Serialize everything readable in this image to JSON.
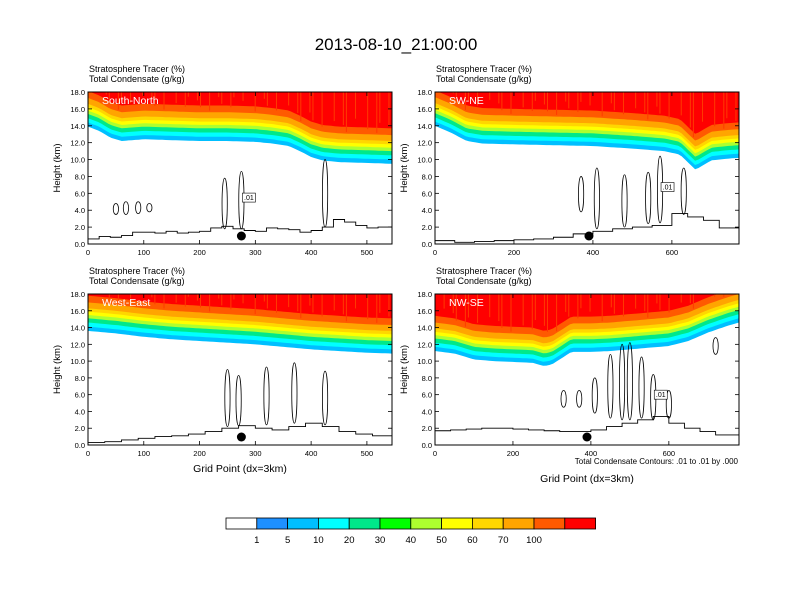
{
  "title": "2013-08-10_21:00:00",
  "footnote": "Total Condensate Contours: .01 to .01 by .000",
  "colorbar": {
    "labels": [
      "1",
      "5",
      "10",
      "20",
      "30",
      "40",
      "50",
      "60",
      "70",
      "100"
    ],
    "colors": [
      "#ffffff",
      "#1e90ff",
      "#00bfff",
      "#00ffff",
      "#00e88a",
      "#00ff00",
      "#adff2f",
      "#ffff00",
      "#ffd700",
      "#ffa500",
      "#ff5a00",
      "#ff0000"
    ]
  },
  "chart_data": [
    {
      "type": "heatmap",
      "panel_label": "South-North",
      "header_line1": "Stratosphere Tracer   (%)",
      "header_line2": "Total Condensate   (g/kg)",
      "ylabel": "Height (km)",
      "xlabel": "",
      "xlim": [
        0,
        545
      ],
      "ylim": [
        0,
        18
      ],
      "x_ticks": [
        "0",
        "100",
        "200",
        "300",
        "400",
        "500"
      ],
      "y_ticks": [
        "0.0",
        "2.0",
        "4.0",
        "6.0",
        "8.0",
        "10.0",
        "12.0",
        "14.0",
        "16.0",
        "18.0"
      ],
      "contour_label": ".01",
      "marker_x": 275,
      "tropopause_x": [
        0,
        20,
        40,
        60,
        80,
        100,
        150,
        200,
        250,
        300,
        330,
        360,
        380,
        400,
        420,
        450,
        500,
        545
      ],
      "tropopause_y": [
        14.5,
        14.0,
        13.2,
        12.8,
        12.9,
        13.0,
        12.9,
        12.8,
        12.8,
        12.7,
        12.5,
        12.2,
        11.6,
        10.9,
        10.5,
        10.3,
        10.2,
        10.1
      ],
      "terrain_x": [
        0,
        20,
        40,
        60,
        80,
        100,
        120,
        140,
        160,
        180,
        200,
        220,
        240,
        260,
        280,
        300,
        320,
        340,
        360,
        380,
        400,
        420,
        440,
        460,
        480,
        500,
        520,
        545
      ],
      "terrain_y": [
        0.6,
        0.9,
        0.8,
        1.0,
        1.4,
        1.4,
        1.3,
        1.5,
        1.3,
        1.4,
        1.5,
        1.9,
        2.1,
        1.8,
        1.6,
        1.5,
        1.9,
        1.8,
        1.7,
        1.4,
        1.6,
        2.0,
        2.9,
        2.6,
        2.2,
        1.9,
        2.0,
        1.8
      ],
      "clouds": [
        {
          "x": 50,
          "ybot": 3.5,
          "ytop": 4.8
        },
        {
          "x": 68,
          "ybot": 3.5,
          "ytop": 5.0
        },
        {
          "x": 90,
          "ybot": 3.6,
          "ytop": 5.0
        },
        {
          "x": 110,
          "ybot": 3.8,
          "ytop": 4.8
        },
        {
          "x": 245,
          "ybot": 1.8,
          "ytop": 7.8
        },
        {
          "x": 275,
          "ybot": 1.8,
          "ytop": 8.6
        },
        {
          "x": 425,
          "ybot": 2.0,
          "ytop": 10.0
        }
      ]
    },
    {
      "type": "heatmap",
      "panel_label": "SW-NE",
      "header_line1": "Stratosphere Tracer   (%)",
      "header_line2": "Total Condensate   (g/kg)",
      "ylabel": "Height (km)",
      "xlabel": "",
      "xlim": [
        0,
        770
      ],
      "ylim": [
        0,
        18
      ],
      "x_ticks": [
        "0",
        "200",
        "400",
        "600"
      ],
      "y_ticks": [
        "0.0",
        "2.0",
        "4.0",
        "6.0",
        "8.0",
        "10.0",
        "12.0",
        "14.0",
        "16.0",
        "18.0"
      ],
      "contour_label": ".01",
      "marker_x": 390,
      "tropopause_x": [
        0,
        40,
        80,
        120,
        200,
        300,
        400,
        500,
        580,
        620,
        660,
        700,
        740,
        770
      ],
      "tropopause_y": [
        14.6,
        13.8,
        12.8,
        12.5,
        12.4,
        12.3,
        12.2,
        11.9,
        11.6,
        11.2,
        9.4,
        10.5,
        10.7,
        10.8
      ],
      "terrain_x": [
        0,
        50,
        100,
        150,
        200,
        250,
        300,
        350,
        400,
        450,
        500,
        550,
        600,
        640,
        680,
        720,
        770
      ],
      "terrain_y": [
        0.4,
        0.2,
        0.3,
        0.4,
        0.5,
        0.6,
        0.8,
        1.2,
        1.5,
        1.8,
        2.0,
        2.2,
        3.6,
        3.2,
        2.8,
        1.9,
        1.8
      ],
      "clouds": [
        {
          "x": 370,
          "ybot": 3.8,
          "ytop": 8.0
        },
        {
          "x": 410,
          "ybot": 1.8,
          "ytop": 9.0
        },
        {
          "x": 480,
          "ybot": 2.0,
          "ytop": 8.2
        },
        {
          "x": 540,
          "ybot": 2.4,
          "ytop": 8.5
        },
        {
          "x": 570,
          "ybot": 2.5,
          "ytop": 10.4
        },
        {
          "x": 630,
          "ybot": 3.5,
          "ytop": 9.0
        }
      ]
    },
    {
      "type": "heatmap",
      "panel_label": "West-East",
      "header_line1": "Stratosphere Tracer   (%)",
      "header_line2": "Total Condensate   (g/kg)",
      "ylabel": "Height (km)",
      "xlabel": "Grid Point (dx=3km)",
      "xlim": [
        0,
        545
      ],
      "ylim": [
        0,
        18
      ],
      "x_ticks": [
        "0",
        "100",
        "200",
        "300",
        "400",
        "500"
      ],
      "y_ticks": [
        "0.0",
        "2.0",
        "4.0",
        "6.0",
        "8.0",
        "10.0",
        "12.0",
        "14.0",
        "16.0",
        "18.0"
      ],
      "contour_label": "",
      "marker_x": 275,
      "tropopause_x": [
        0,
        50,
        100,
        150,
        200,
        250,
        300,
        350,
        400,
        450,
        500,
        545
      ],
      "tropopause_y": [
        14.2,
        13.9,
        13.5,
        13.2,
        13.0,
        12.8,
        12.6,
        12.3,
        12.0,
        11.8,
        11.6,
        11.5
      ],
      "terrain_x": [
        0,
        30,
        60,
        90,
        120,
        150,
        180,
        210,
        240,
        270,
        300,
        330,
        360,
        390,
        420,
        450,
        480,
        510,
        545
      ],
      "terrain_y": [
        0.3,
        0.4,
        0.6,
        0.8,
        1.0,
        1.1,
        1.3,
        1.6,
        2.0,
        2.3,
        2.0,
        1.8,
        2.2,
        2.6,
        2.2,
        1.6,
        1.3,
        1.1,
        1.0
      ],
      "clouds": [
        {
          "x": 250,
          "ybot": 2.2,
          "ytop": 9.0
        },
        {
          "x": 270,
          "ybot": 2.3,
          "ytop": 8.3
        },
        {
          "x": 320,
          "ybot": 2.4,
          "ytop": 9.3
        },
        {
          "x": 370,
          "ybot": 2.6,
          "ytop": 9.8
        },
        {
          "x": 425,
          "ybot": 2.4,
          "ytop": 8.8
        }
      ]
    },
    {
      "type": "heatmap",
      "panel_label": "NW-SE",
      "header_line1": "Stratosphere Tracer   (%)",
      "header_line2": "Total Condensate   (g/kg)",
      "ylabel": "Height (km)",
      "xlabel": "Grid Point (dx=3km)",
      "xlim": [
        0,
        780
      ],
      "ylim": [
        0,
        18
      ],
      "x_ticks": [
        "0",
        "200",
        "400",
        "600"
      ],
      "y_ticks": [
        "0.0",
        "2.0",
        "4.0",
        "6.0",
        "8.0",
        "10.0",
        "12.0",
        "14.0",
        "16.0",
        "18.0"
      ],
      "contour_label": ".01",
      "marker_x": 390,
      "tropopause_x": [
        0,
        50,
        100,
        150,
        200,
        250,
        280,
        300,
        350,
        400,
        450,
        500,
        550,
        600,
        650,
        700,
        750,
        780
      ],
      "tropopause_y": [
        11.8,
        11.5,
        10.8,
        10.6,
        10.5,
        10.4,
        10.0,
        10.2,
        11.7,
        11.7,
        11.8,
        12.0,
        12.2,
        12.4,
        13.0,
        14.0,
        14.8,
        15.2
      ],
      "terrain_x": [
        0,
        40,
        80,
        120,
        160,
        200,
        240,
        280,
        320,
        360,
        400,
        440,
        480,
        520,
        560,
        600,
        640,
        680,
        720,
        780
      ],
      "terrain_y": [
        1.7,
        1.8,
        1.9,
        2.0,
        2.0,
        1.9,
        1.8,
        1.7,
        1.6,
        1.6,
        1.8,
        2.2,
        2.6,
        3.0,
        3.4,
        2.6,
        2.0,
        1.6,
        1.2,
        0.6
      ],
      "clouds": [
        {
          "x": 330,
          "ybot": 4.5,
          "ytop": 6.5
        },
        {
          "x": 370,
          "ybot": 4.5,
          "ytop": 6.5
        },
        {
          "x": 410,
          "ybot": 3.8,
          "ytop": 8.0
        },
        {
          "x": 450,
          "ybot": 3.2,
          "ytop": 10.8
        },
        {
          "x": 480,
          "ybot": 3.0,
          "ytop": 12.0
        },
        {
          "x": 500,
          "ybot": 3.0,
          "ytop": 12.2
        },
        {
          "x": 530,
          "ybot": 3.2,
          "ytop": 10.5
        },
        {
          "x": 560,
          "ybot": 3.0,
          "ytop": 8.4
        },
        {
          "x": 600,
          "ybot": 3.2,
          "ytop": 6.5
        },
        {
          "x": 720,
          "ybot": 10.8,
          "ytop": 12.8
        }
      ]
    }
  ]
}
